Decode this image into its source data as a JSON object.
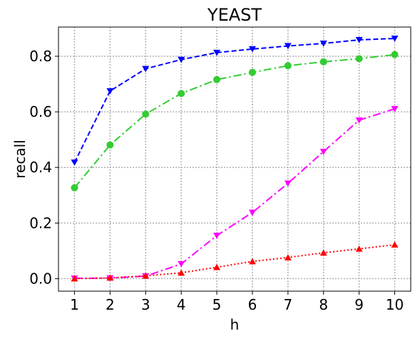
{
  "chart_data": {
    "type": "line",
    "title": "YEAST",
    "xlabel": "h",
    "ylabel": "recall",
    "x": [
      1,
      2,
      3,
      4,
      5,
      6,
      7,
      8,
      9,
      10
    ],
    "xlim": [
      0.55,
      10.45
    ],
    "ylim": [
      -0.045,
      0.905
    ],
    "xticks": [
      "1",
      "2",
      "3",
      "4",
      "5",
      "6",
      "7",
      "8",
      "9",
      "10"
    ],
    "yticks": [
      "0.0",
      "0.2",
      "0.4",
      "0.6",
      "0.8"
    ],
    "grid": true,
    "legend": "none",
    "series": [
      {
        "color": "#0000ff",
        "linestyle": "dashed",
        "marker": "triangle-down",
        "values": [
          0.418,
          0.675,
          0.755,
          0.788,
          0.813,
          0.826,
          0.837,
          0.846,
          0.859,
          0.864
        ]
      },
      {
        "color": "#33cc33",
        "linestyle": "dashdot",
        "marker": "circle",
        "values": [
          0.327,
          0.481,
          0.592,
          0.666,
          0.716,
          0.742,
          0.766,
          0.78,
          0.791,
          0.806
        ]
      },
      {
        "color": "#ff00ff",
        "linestyle": "dashdot",
        "marker": "triangle-down",
        "values": [
          0.001,
          0.002,
          0.009,
          0.053,
          0.155,
          0.238,
          0.343,
          0.457,
          0.57,
          0.611
        ]
      },
      {
        "color": "#ff0000",
        "linestyle": "dotted",
        "marker": "triangle-up",
        "values": [
          0.0,
          0.003,
          0.01,
          0.021,
          0.041,
          0.062,
          0.076,
          0.093,
          0.107,
          0.122
        ]
      }
    ]
  }
}
